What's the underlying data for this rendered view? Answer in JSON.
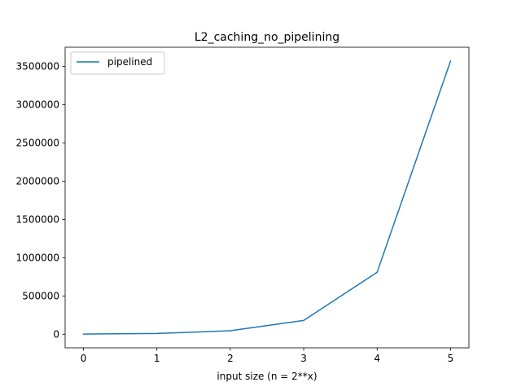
{
  "chart_data": {
    "type": "line",
    "title": "L2_caching_no_pipelining",
    "xlabel": "input size (n = 2**x)",
    "ylabel": "",
    "x": [
      0,
      1,
      2,
      3,
      4,
      5
    ],
    "xticks": [
      0,
      1,
      2,
      3,
      4,
      5
    ],
    "yticks": [
      0,
      500000,
      1000000,
      1500000,
      2000000,
      2500000,
      3000000,
      3500000
    ],
    "xlim": [
      -0.25,
      5.25
    ],
    "ylim": [
      -178000,
      3750000
    ],
    "grid": false,
    "legend_position": "top-left",
    "series": [
      {
        "name": "pipelined",
        "color": "#1f77b4",
        "values": [
          2000,
          10000,
          45000,
          180000,
          810000,
          3570000
        ]
      }
    ]
  }
}
